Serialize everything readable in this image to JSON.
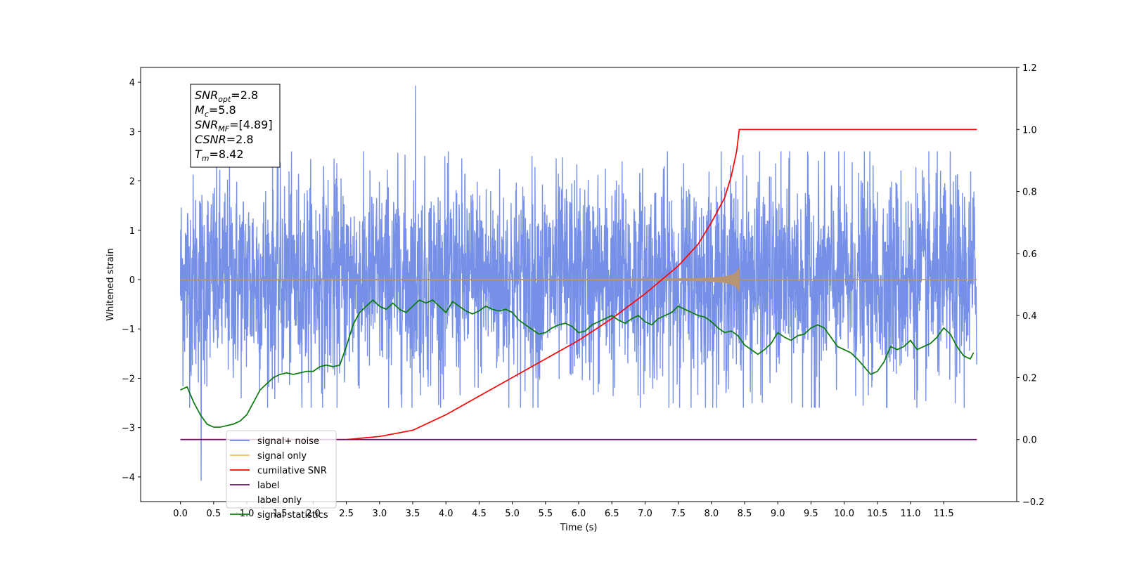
{
  "chart_data": {
    "type": "line",
    "xlabel": "Time (s)",
    "ylabel": "Whitened strain",
    "xlim": [
      -0.6,
      12.6
    ],
    "ylim": [
      -4.5,
      4.3
    ],
    "y2lim": [
      -0.2,
      1.2
    ],
    "x_ticks": [
      0.0,
      0.5,
      1.0,
      1.5,
      2.0,
      2.5,
      3.0,
      3.5,
      4.0,
      4.5,
      5.0,
      5.5,
      6.0,
      6.5,
      7.0,
      7.5,
      8.0,
      8.5,
      9.0,
      9.5,
      10.0,
      10.5,
      11.0,
      11.5
    ],
    "x_tick_labels": [
      "0.0",
      "0.5",
      "1.0",
      "1.5",
      "2.0",
      "2.5",
      "3.0",
      "3.5",
      "4.0",
      "4.5",
      "5.0",
      "5.5",
      "6.0",
      "6.5",
      "7.0",
      "7.5",
      "8.0",
      "8.5",
      "9.0",
      "9.5",
      "10.0",
      "10.5",
      "11.0",
      "11.5"
    ],
    "y_ticks": [
      -4,
      -3,
      -2,
      -1,
      0,
      1,
      2,
      3,
      4
    ],
    "y_tick_labels": [
      "−4",
      "−3",
      "−2",
      "−1",
      "0",
      "1",
      "2",
      "3",
      "4"
    ],
    "y2_ticks": [
      -0.2,
      0.0,
      0.2,
      0.4,
      0.6,
      0.8,
      1.0,
      1.2
    ],
    "y2_tick_labels": [
      "−0.2",
      "0.0",
      "0.2",
      "0.4",
      "0.6",
      "0.8",
      "1.0",
      "1.2"
    ],
    "grid": false,
    "legend_position": "bottom-left",
    "info_box": [
      {
        "sym": "SNR",
        "sub": "opt",
        "val": "=2.8"
      },
      {
        "sym": "M",
        "sub": "c",
        "val": "=5.8"
      },
      {
        "sym": "SNR",
        "sub": "MF",
        "val": "=[4.89]"
      },
      {
        "sym": "CSNR",
        "sub": "",
        "val": "=2.8"
      },
      {
        "sym": "T",
        "sub": "m",
        "val": "=8.42"
      }
    ],
    "series": [
      {
        "name": "signal+ noise",
        "color": "#6a87e6",
        "axis": "left",
        "kind": "noise",
        "x_range": [
          0.0,
          12.0
        ],
        "envelope": [
          -2.6,
          2.6
        ],
        "peak_max": 3.93,
        "peak_min": -4.08
      },
      {
        "name": "signal only",
        "color": "#f5b840",
        "axis": "left",
        "kind": "chirp",
        "x_range": [
          0.0,
          12.0
        ],
        "merger_time": 8.42,
        "peak_amplitude": 0.25
      },
      {
        "name": "cumilative SNR",
        "color": "#ff0000",
        "axis": "right",
        "x": [
          0.0,
          2.5,
          3.0,
          3.5,
          4.0,
          4.5,
          5.0,
          5.5,
          6.0,
          6.5,
          7.0,
          7.5,
          7.8,
          8.0,
          8.2,
          8.3,
          8.38,
          8.42,
          9.0,
          10.0,
          11.0,
          12.0
        ],
        "values": [
          0.0,
          0.0,
          0.01,
          0.03,
          0.08,
          0.14,
          0.2,
          0.26,
          0.32,
          0.39,
          0.47,
          0.56,
          0.63,
          0.7,
          0.78,
          0.85,
          0.93,
          1.0,
          1.0,
          1.0,
          1.0,
          1.0
        ]
      },
      {
        "name": "label",
        "color": "#6c0a6c",
        "axis": "right",
        "x": [
          0.0,
          12.0
        ],
        "values": [
          0.0,
          0.0
        ]
      },
      {
        "name": "label only",
        "color": "#d8d8d8",
        "axis": "right",
        "kind": "hidden",
        "x": [],
        "values": []
      },
      {
        "name": "signal statistics",
        "color": "#0a7a0a",
        "axis": "right",
        "x": [
          0.0,
          0.1,
          0.2,
          0.3,
          0.4,
          0.5,
          0.6,
          0.7,
          0.8,
          0.9,
          1.0,
          1.1,
          1.2,
          1.3,
          1.4,
          1.5,
          1.6,
          1.7,
          1.8,
          1.9,
          2.0,
          2.1,
          2.2,
          2.3,
          2.4,
          2.5,
          2.6,
          2.7,
          2.8,
          2.9,
          3.0,
          3.1,
          3.2,
          3.3,
          3.4,
          3.5,
          3.6,
          3.7,
          3.8,
          3.9,
          4.0,
          4.1,
          4.2,
          4.3,
          4.4,
          4.5,
          4.6,
          4.7,
          4.8,
          4.9,
          5.0,
          5.1,
          5.2,
          5.3,
          5.4,
          5.5,
          5.6,
          5.7,
          5.8,
          5.9,
          6.0,
          6.1,
          6.2,
          6.3,
          6.4,
          6.5,
          6.6,
          6.7,
          6.8,
          6.9,
          7.0,
          7.1,
          7.2,
          7.3,
          7.4,
          7.5,
          7.6,
          7.7,
          7.8,
          7.9,
          8.0,
          8.1,
          8.2,
          8.3,
          8.4,
          8.5,
          8.6,
          8.7,
          8.8,
          8.9,
          9.0,
          9.1,
          9.2,
          9.3,
          9.4,
          9.5,
          9.6,
          9.7,
          9.8,
          9.9,
          10.0,
          10.1,
          10.2,
          10.3,
          10.4,
          10.5,
          10.6,
          10.7,
          10.8,
          10.9,
          11.0,
          11.1,
          11.2,
          11.3,
          11.4,
          11.5,
          11.6,
          11.7,
          11.8,
          11.9,
          11.95
        ],
        "values": [
          0.16,
          0.17,
          0.12,
          0.08,
          0.05,
          0.04,
          0.04,
          0.045,
          0.05,
          0.06,
          0.08,
          0.12,
          0.16,
          0.18,
          0.2,
          0.21,
          0.215,
          0.21,
          0.215,
          0.22,
          0.22,
          0.235,
          0.24,
          0.235,
          0.24,
          0.3,
          0.37,
          0.41,
          0.43,
          0.45,
          0.43,
          0.42,
          0.44,
          0.42,
          0.41,
          0.43,
          0.45,
          0.44,
          0.45,
          0.43,
          0.41,
          0.445,
          0.43,
          0.415,
          0.405,
          0.415,
          0.43,
          0.42,
          0.415,
          0.42,
          0.41,
          0.385,
          0.37,
          0.355,
          0.34,
          0.345,
          0.36,
          0.37,
          0.375,
          0.365,
          0.345,
          0.35,
          0.37,
          0.38,
          0.39,
          0.4,
          0.385,
          0.375,
          0.39,
          0.4,
          0.38,
          0.37,
          0.39,
          0.4,
          0.41,
          0.43,
          0.42,
          0.41,
          0.4,
          0.395,
          0.38,
          0.36,
          0.345,
          0.35,
          0.335,
          0.305,
          0.29,
          0.275,
          0.29,
          0.31,
          0.345,
          0.33,
          0.32,
          0.335,
          0.34,
          0.36,
          0.37,
          0.36,
          0.33,
          0.3,
          0.29,
          0.28,
          0.26,
          0.235,
          0.21,
          0.22,
          0.25,
          0.3,
          0.29,
          0.3,
          0.32,
          0.29,
          0.3,
          0.31,
          0.33,
          0.36,
          0.34,
          0.3,
          0.27,
          0.26,
          0.28
        ]
      }
    ]
  }
}
